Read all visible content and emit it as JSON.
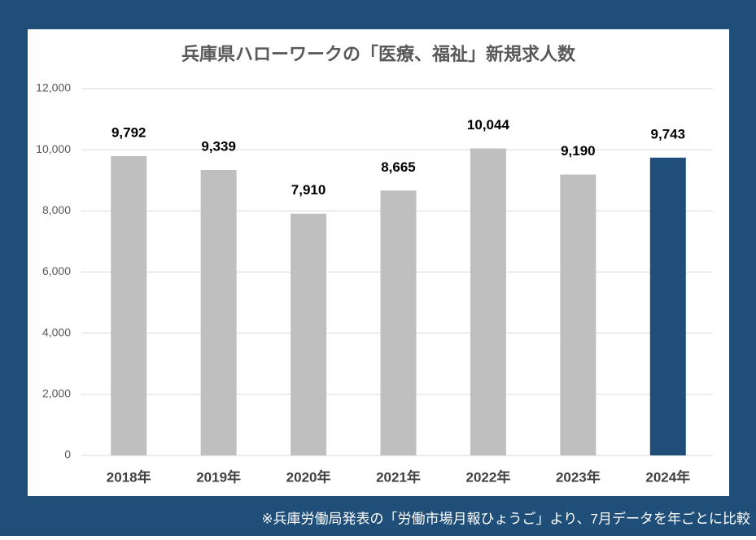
{
  "chart_data": {
    "type": "bar",
    "title": "兵庫県ハローワークの「医療、福祉」新規求人数",
    "categories": [
      "2018年",
      "2019年",
      "2020年",
      "2021年",
      "2022年",
      "2023年",
      "2024年"
    ],
    "values": [
      9792,
      9339,
      7910,
      8665,
      10044,
      9190,
      9743
    ],
    "value_labels": [
      "9,792",
      "9,339",
      "7,910",
      "8,665",
      "10,044",
      "9,190",
      "9,743"
    ],
    "colors": [
      "#bfbfbf",
      "#bfbfbf",
      "#bfbfbf",
      "#bfbfbf",
      "#bfbfbf",
      "#bfbfbf",
      "#1f4e79"
    ],
    "ylim": [
      0,
      12000
    ],
    "yticks": [
      0,
      {
        "value": 2000,
        "label": "2,000"
      },
      {
        "value": 4000,
        "label": "4,000"
      },
      {
        "value": 6000,
        "label": "6,000"
      },
      {
        "value": 8000,
        "label": "8,000"
      },
      {
        "value": 10000,
        "label": "10,000"
      },
      {
        "value": 12000,
        "label": "12,000"
      }
    ],
    "grid": true,
    "note": "※兵庫労働局発表の「労働市場月報ひょうご」より、7月データを年ごとに比較"
  }
}
